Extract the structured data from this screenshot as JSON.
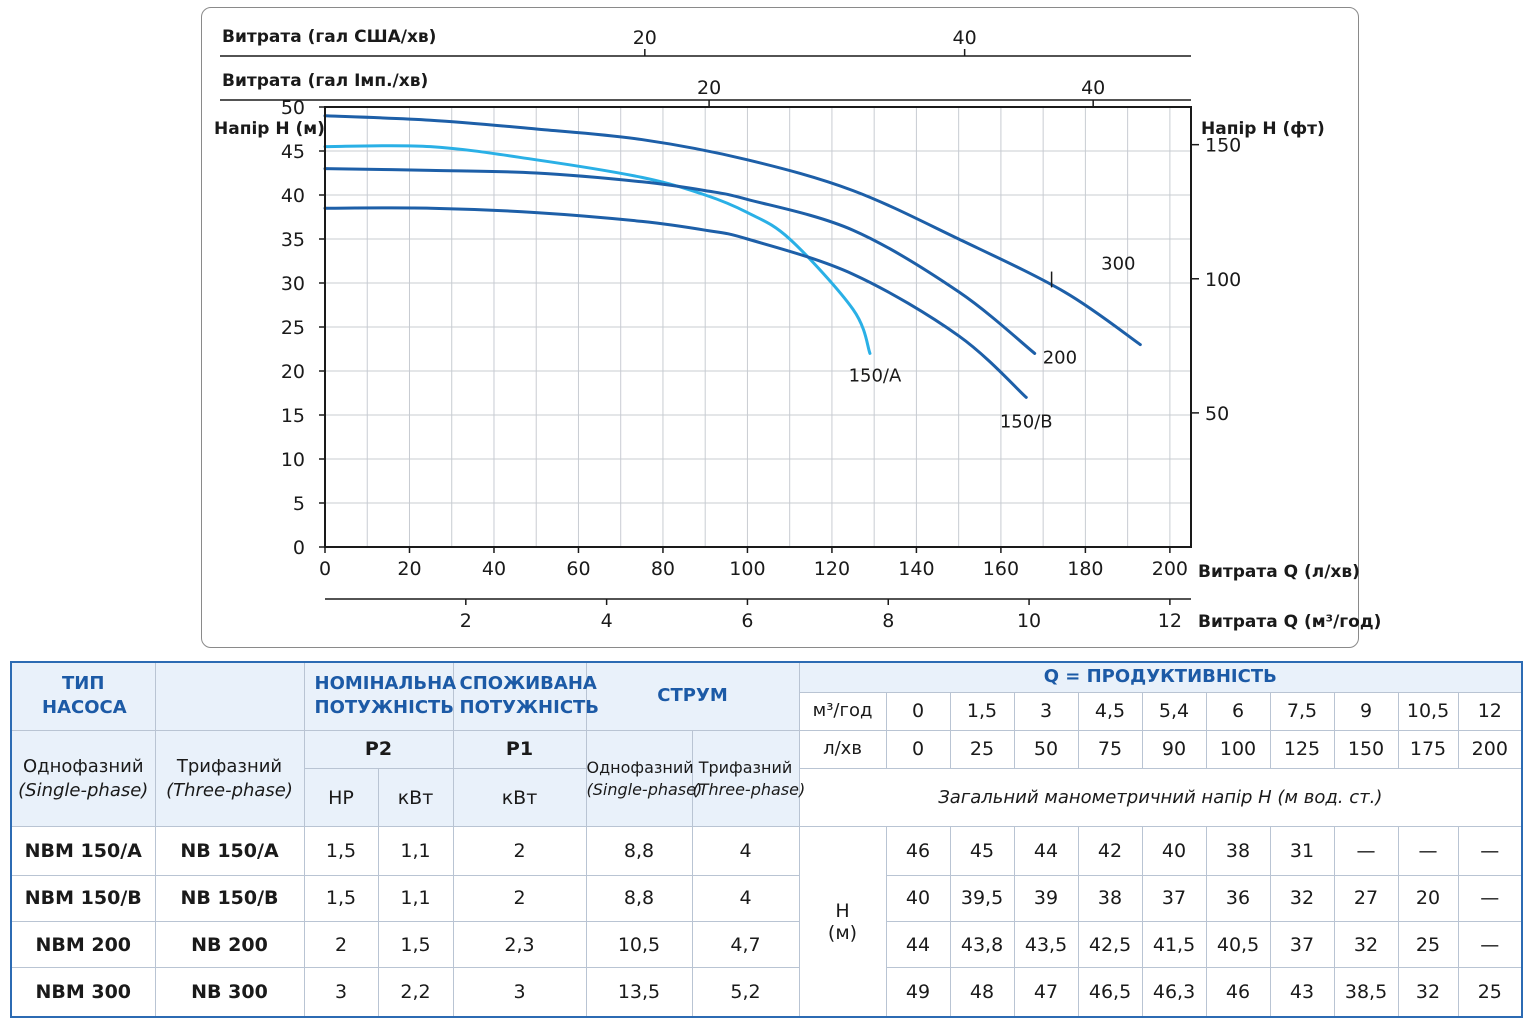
{
  "chart_data": {
    "type": "line",
    "title": "",
    "xlabel": "Витрата Q (л/хв)",
    "ylabel": "Напір H (м)",
    "right_ylabel": "Напір H (фт)",
    "top_axis_1_label": "Витрата (гал США/хв)",
    "top_axis_2_label": "Витрата (гал Імп./хв)",
    "bottom_axis_2_label": "Витрата Q (м³/год)",
    "xlim": [
      0,
      205
    ],
    "ylim": [
      0,
      50
    ],
    "grid": true,
    "x_ticks": [
      0,
      20,
      40,
      60,
      80,
      100,
      120,
      140,
      160,
      180,
      200
    ],
    "y_ticks": [
      0,
      5,
      10,
      15,
      20,
      25,
      30,
      35,
      40,
      45,
      50
    ],
    "right_ticks": [
      50,
      100,
      150
    ],
    "top_usgal_ticks": [
      20,
      40
    ],
    "top_impgal_ticks": [
      20,
      40
    ],
    "m3h_ticks": [
      2,
      4,
      6,
      8,
      10,
      12
    ],
    "series": [
      {
        "name": "150/A",
        "color": "#2ab0e6",
        "x": [
          0,
          25,
          50,
          75,
          90,
          100,
          110,
          125,
          129
        ],
        "y": [
          45.5,
          45.5,
          44,
          42,
          40,
          38,
          35,
          27,
          22
        ]
      },
      {
        "name": "150/B",
        "color": "#1d5fa8",
        "x": [
          0,
          25,
          50,
          75,
          90,
          100,
          125,
          150,
          166
        ],
        "y": [
          38.5,
          38.5,
          38,
          37,
          36,
          35,
          31,
          24,
          17
        ]
      },
      {
        "name": "200",
        "color": "#1d5fa8",
        "x": [
          0,
          25,
          50,
          75,
          90,
          100,
          125,
          150,
          168
        ],
        "y": [
          43,
          42.8,
          42.5,
          41.5,
          40.5,
          39.5,
          36,
          29,
          22
        ]
      },
      {
        "name": "300",
        "color": "#1d5fa8",
        "x": [
          0,
          25,
          50,
          75,
          100,
          125,
          150,
          175,
          193
        ],
        "y": [
          49,
          48.5,
          47.5,
          46.3,
          44,
          40.5,
          35,
          29,
          23
        ]
      }
    ],
    "curve_labels": [
      "150/A",
      "150/B",
      "200",
      "300"
    ]
  },
  "table": {
    "hdr_type": "ТИП НАСОСА",
    "hdr_nominal": "НОМІНАЛЬНА ПОТУЖНІСТЬ",
    "hdr_consumed": "СПОЖИВАНА ПОТУЖНІСТЬ",
    "hdr_current": "СТРУМ",
    "hdr_productivity": "Q = ПРОДУКТИВНІСТЬ",
    "p2": "P2",
    "p1": "P1",
    "hp": "HP",
    "kw": "кВт",
    "single_phase": "Однофазний",
    "single_phase_en": "(Single-phase)",
    "three_phase": "Трифазний",
    "three_phase_en": "(Three-phase)",
    "unit_m3h": "м³/год",
    "unit_lmin": "л/хв",
    "q_m3h": [
      "0",
      "1,5",
      "3",
      "4,5",
      "5,4",
      "6",
      "7,5",
      "9",
      "10,5",
      "12"
    ],
    "q_lmin": [
      "0",
      "25",
      "50",
      "75",
      "90",
      "100",
      "125",
      "150",
      "175",
      "200"
    ],
    "head_note": "Загальний манометричний напір H (м вод. ст.)",
    "h_label": "H",
    "h_unit": "(м)",
    "rows": [
      {
        "single": "NBM 150/A",
        "three": "NB 150/A",
        "hp": "1,5",
        "kw": "1,1",
        "p1": "2",
        "i1": "8,8",
        "i3": "4",
        "heads": [
          "46",
          "45",
          "44",
          "42",
          "40",
          "38",
          "31",
          "—",
          "—",
          "—"
        ]
      },
      {
        "single": "NBM 150/B",
        "three": "NB 150/B",
        "hp": "1,5",
        "kw": "1,1",
        "p1": "2",
        "i1": "8,8",
        "i3": "4",
        "heads": [
          "40",
          "39,5",
          "39",
          "38",
          "37",
          "36",
          "32",
          "27",
          "20",
          "—"
        ]
      },
      {
        "single": "NBM 200",
        "three": "NB 200",
        "hp": "2",
        "kw": "1,5",
        "p1": "2,3",
        "i1": "10,5",
        "i3": "4,7",
        "heads": [
          "44",
          "43,8",
          "43,5",
          "42,5",
          "41,5",
          "40,5",
          "37",
          "32",
          "25",
          "—"
        ]
      },
      {
        "single": "NBM 300",
        "three": "NB 300",
        "hp": "3",
        "kw": "2,2",
        "p1": "3",
        "i1": "13,5",
        "i3": "5,2",
        "heads": [
          "49",
          "48",
          "47",
          "46,5",
          "46,3",
          "46",
          "43",
          "38,5",
          "32",
          "25"
        ]
      }
    ]
  }
}
